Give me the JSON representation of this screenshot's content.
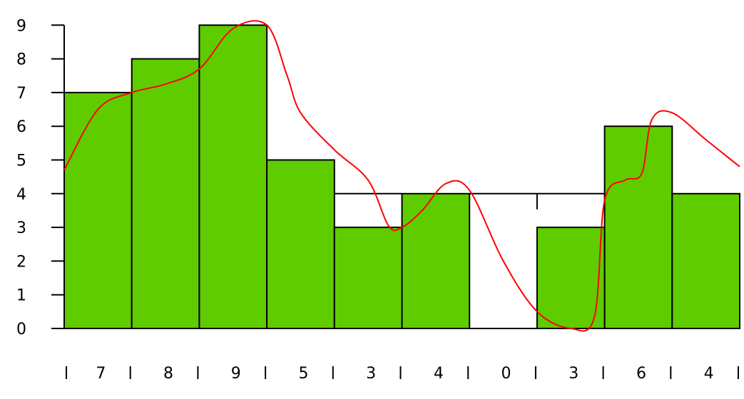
{
  "chart_data": {
    "type": "bar",
    "categories": [
      "7",
      "8",
      "9",
      "5",
      "3",
      "4",
      "0",
      "3",
      "6",
      "4"
    ],
    "values": [
      7,
      8,
      9,
      5,
      3,
      4,
      0,
      3,
      6,
      4
    ],
    "y_ticks": [
      "0",
      "1",
      "2",
      "3",
      "4",
      "5",
      "6",
      "7",
      "8",
      "9"
    ],
    "ylim": [
      0,
      9.5
    ],
    "bar_color": "#5fcc00",
    "outline_color": "#000000",
    "reference_line": {
      "value": 4,
      "color": "#000000"
    },
    "curve": {
      "color": "#ff0000",
      "points": [
        [
          0.0,
          4.7
        ],
        [
          0.5,
          6.5
        ],
        [
          1.0,
          7.0
        ],
        [
          1.5,
          7.25
        ],
        [
          2.0,
          7.7
        ],
        [
          2.5,
          8.9
        ],
        [
          3.0,
          9.0
        ],
        [
          3.3,
          7.5
        ],
        [
          3.5,
          6.4
        ],
        [
          4.0,
          5.3
        ],
        [
          4.5,
          4.4
        ],
        [
          4.8,
          3.05
        ],
        [
          5.0,
          3.0
        ],
        [
          5.3,
          3.5
        ],
        [
          5.65,
          4.3
        ],
        [
          6.0,
          4.1
        ],
        [
          6.5,
          2.0
        ],
        [
          7.0,
          0.5
        ],
        [
          7.5,
          0.0
        ],
        [
          7.85,
          0.35
        ],
        [
          8.0,
          3.8
        ],
        [
          8.3,
          4.4
        ],
        [
          8.55,
          4.6
        ],
        [
          8.7,
          6.2
        ],
        [
          9.0,
          6.4
        ],
        [
          9.5,
          5.6
        ],
        [
          10.0,
          4.8
        ]
      ]
    },
    "legend": "none",
    "grid": false
  }
}
